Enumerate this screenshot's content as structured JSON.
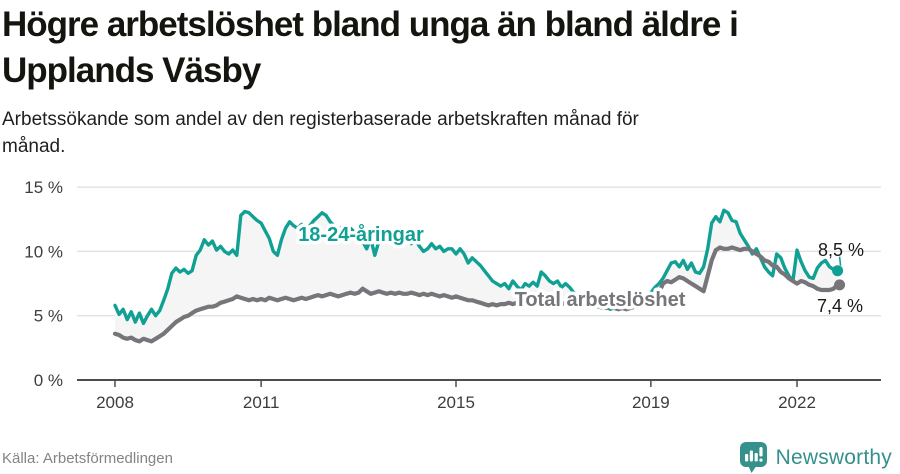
{
  "header": {
    "title": "Högre arbetslöshet bland unga än bland äldre i Upplands Väsby",
    "title_lines": [
      "Högre arbetslöshet bland unga än bland äldre i",
      "Upplands Väsby"
    ],
    "subtitle": "Arbetssökande som andel av den registerbaserade arbetskraften månad för månad.",
    "subtitle_lines": [
      "Arbetssökande som andel av den registerbaserade arbetskraften månad för",
      "månad."
    ]
  },
  "footer": {
    "source": "Källa: Arbetsförmedlingen",
    "brand": "Newsworthy"
  },
  "colors": {
    "youth": "#10a094",
    "total": "#76767a",
    "band": "#f5f5f5",
    "grid": "#e3e3e3",
    "axis": "#4d4d4d",
    "logo": "#35918b",
    "end_label_text": "#1a1a1a"
  },
  "chart_data": {
    "type": "line",
    "title": "Högre arbetslöshet bland unga än bland äldre i Upplands Väsby",
    "subtitle": "Arbetssökande som andel av den registerbaserade arbetskraften månad för månad.",
    "xlabel": "",
    "ylabel": "",
    "x_unit": "month",
    "x_start": "2008-01",
    "x_end": "2022-11",
    "x_ticks": [
      "2008",
      "2011",
      "2015",
      "2019",
      "2022"
    ],
    "y_ticks": [
      "0 %",
      "5 %",
      "10 %",
      "15 %"
    ],
    "ylim": [
      0,
      15
    ],
    "grid": true,
    "legend_position": "inline-labels",
    "series": [
      {
        "name": "18-24-åringar",
        "color": "#10a094",
        "end_label": "8,5 %",
        "end_value": 8.5,
        "values": [
          5.8,
          5.1,
          5.5,
          4.7,
          5.3,
          4.5,
          5.2,
          4.4,
          5.0,
          5.5,
          5.0,
          5.4,
          6.2,
          7.1,
          8.3,
          8.7,
          8.4,
          8.6,
          8.3,
          8.5,
          9.7,
          10.1,
          10.9,
          10.5,
          10.8,
          10.1,
          10.4,
          10.0,
          9.8,
          10.1,
          9.7,
          12.8,
          13.1,
          13.0,
          12.7,
          12.4,
          12.2,
          11.6,
          11.0,
          10.0,
          9.7,
          10.9,
          11.8,
          12.3,
          12.0,
          11.8,
          12.1,
          11.9,
          12.0,
          12.4,
          12.7,
          13.0,
          12.8,
          12.3,
          12.0,
          11.7,
          11.9,
          11.6,
          11.8,
          11.5,
          11.2,
          10.8,
          10.2,
          11.0,
          9.7,
          10.8,
          11.2,
          11.0,
          10.8,
          11.0,
          10.9,
          10.7,
          10.9,
          10.6,
          10.9,
          10.4,
          10.0,
          10.2,
          10.6,
          10.2,
          10.4,
          10.0,
          10.2,
          10.2,
          9.8,
          10.2,
          9.8,
          9.1,
          9.5,
          9.2,
          8.9,
          8.5,
          8.1,
          7.7,
          7.5,
          7.3,
          7.5,
          7.1,
          7.7,
          7.3,
          7.0,
          7.5,
          7.3,
          7.6,
          7.3,
          8.4,
          8.1,
          7.7,
          7.5,
          7.7,
          7.2,
          7.5,
          7.2,
          6.8,
          6.5,
          6.3,
          6.1,
          5.9,
          5.8,
          5.7,
          5.6,
          5.7,
          5.5,
          5.6,
          5.5,
          5.6,
          5.7,
          5.8,
          6.0,
          6.2,
          6.4,
          6.6,
          6.8,
          7.2,
          7.5,
          7.9,
          8.5,
          9.1,
          9.2,
          8.8,
          9.3,
          8.6,
          9.1,
          8.4,
          8.3,
          8.8,
          10.2,
          12.2,
          12.7,
          12.3,
          13.2,
          13.0,
          12.4,
          12.3,
          11.4,
          10.9,
          10.4,
          9.8,
          10.2,
          9.5,
          8.8,
          8.4,
          8.1,
          9.8,
          9.5,
          8.7,
          8.1,
          7.7,
          10.1,
          9.2,
          8.5,
          8.0,
          7.9,
          8.7,
          9.1,
          9.3,
          8.8,
          8.6,
          8.5
        ]
      },
      {
        "name": "Total arbetslöshet",
        "color": "#76767a",
        "end_label": "7,4 %",
        "end_value": 7.4,
        "values": [
          3.6,
          3.5,
          3.3,
          3.2,
          3.3,
          3.1,
          3.0,
          3.2,
          3.1,
          3.0,
          3.2,
          3.4,
          3.6,
          3.9,
          4.2,
          4.5,
          4.7,
          4.9,
          5.0,
          5.2,
          5.4,
          5.5,
          5.6,
          5.7,
          5.7,
          5.8,
          6.0,
          6.1,
          6.2,
          6.3,
          6.5,
          6.4,
          6.3,
          6.2,
          6.3,
          6.2,
          6.3,
          6.2,
          6.4,
          6.3,
          6.2,
          6.3,
          6.4,
          6.3,
          6.2,
          6.3,
          6.4,
          6.3,
          6.4,
          6.5,
          6.6,
          6.5,
          6.6,
          6.7,
          6.6,
          6.5,
          6.6,
          6.7,
          6.8,
          6.7,
          6.8,
          7.1,
          6.9,
          6.7,
          6.8,
          6.9,
          6.8,
          6.7,
          6.8,
          6.7,
          6.8,
          6.7,
          6.7,
          6.8,
          6.7,
          6.6,
          6.7,
          6.6,
          6.7,
          6.6,
          6.5,
          6.6,
          6.5,
          6.4,
          6.5,
          6.4,
          6.3,
          6.2,
          6.2,
          6.1,
          6.0,
          5.9,
          5.8,
          5.9,
          5.8,
          5.9,
          5.9,
          6.0,
          5.9,
          6.0,
          6.1,
          6.0,
          6.1,
          6.2,
          6.1,
          6.0,
          6.1,
          6.0,
          6.1,
          6.0,
          5.9,
          6.0,
          5.9,
          5.8,
          5.9,
          5.8,
          5.7,
          5.8,
          5.7,
          5.8,
          5.7,
          5.6,
          5.7,
          5.6,
          5.5,
          5.6,
          5.5,
          5.6,
          5.7,
          5.8,
          5.9,
          6.0,
          6.2,
          6.5,
          6.8,
          7.5,
          7.7,
          7.6,
          7.8,
          8.0,
          7.9,
          7.7,
          7.5,
          7.3,
          7.1,
          6.9,
          8.1,
          9.3,
          10.1,
          10.3,
          10.2,
          10.2,
          10.3,
          10.2,
          10.1,
          10.2,
          10.2,
          10.0,
          9.8,
          9.6,
          9.3,
          9.2,
          8.9,
          8.8,
          8.4,
          8.2,
          7.9,
          7.7,
          7.5,
          7.7,
          7.6,
          7.4,
          7.3,
          7.1,
          7.0,
          7.0,
          7.0,
          7.1,
          7.4
        ]
      }
    ]
  }
}
